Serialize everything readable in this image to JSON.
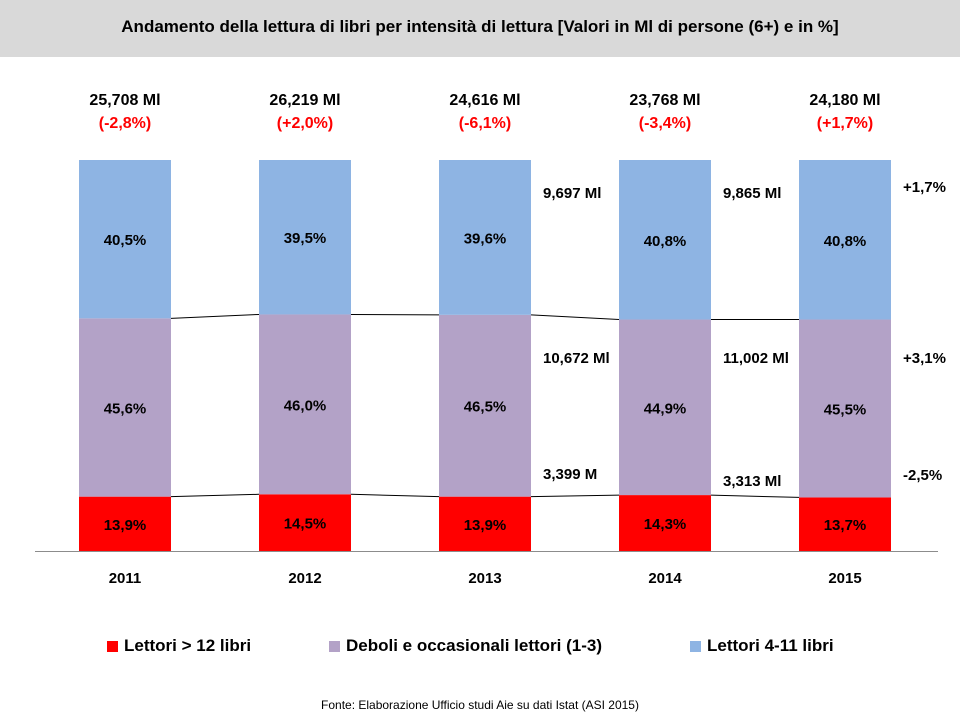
{
  "title": "Andamento della lettura di libri per intensità di lettura [Valori  in Ml di persone (6+) e in %]",
  "source": "Fonte: Elaborazione Ufficio studi Aie su dati Istat (ASI 2015)",
  "colors": {
    "heavy": "#ff0000",
    "weak": "#b3a2c7",
    "medium": "#8eb4e3",
    "title_bg": "#d9d9d9",
    "change_red": "#ff0000"
  },
  "legend": [
    {
      "key": "heavy",
      "label": "Lettori > 12 libri"
    },
    {
      "key": "weak",
      "label": "Deboli e occasionali lettori (1-3)"
    },
    {
      "key": "medium",
      "label": "Lettori 4-11 libri"
    }
  ],
  "chart_data": {
    "type": "bar",
    "stacked": "100%",
    "categories": [
      "2011",
      "2012",
      "2013",
      "2014",
      "2015"
    ],
    "series": [
      {
        "key": "heavy",
        "name": "Lettori > 12 libri",
        "values": [
          13.9,
          14.5,
          13.9,
          14.3,
          13.7
        ],
        "labels": [
          "13,9%",
          "14,5%",
          "13,9%",
          "14,3%",
          "13,7%"
        ]
      },
      {
        "key": "weak",
        "name": "Deboli e occasionali lettori (1-3)",
        "values": [
          45.6,
          46.0,
          46.5,
          44.9,
          45.5
        ],
        "labels": [
          "45,6%",
          "46,0%",
          "46,5%",
          "44,9%",
          "45,5%"
        ]
      },
      {
        "key": "medium",
        "name": "Lettori 4-11 libri",
        "values": [
          40.5,
          39.5,
          39.6,
          40.8,
          40.8
        ],
        "labels": [
          "40,5%",
          "39,5%",
          "39,6%",
          "40,8%",
          "40,8%"
        ]
      }
    ],
    "totals": {
      "values": [
        "25,708 Ml",
        "26,219 Ml",
        "24,616 Ml",
        "23,768 Ml",
        "24,180 Ml"
      ],
      "changes": [
        "(-2,8%)",
        "(+2,0%)",
        "(-6,1%)",
        "(-3,4%)",
        "(+1,7%)"
      ]
    },
    "annotations_2014": {
      "medium": "9,697 Ml",
      "weak": "10,672 Ml",
      "heavy": "3,399 M"
    },
    "annotations_2015": {
      "medium": "9,865 Ml",
      "weak": "11,002 Ml",
      "heavy": "3,313 Ml"
    },
    "changes_2015_vs_2014": {
      "medium": "+1,7%",
      "weak": "+3,1%",
      "heavy": "-2,5%"
    },
    "ylim": [
      0,
      100
    ]
  }
}
